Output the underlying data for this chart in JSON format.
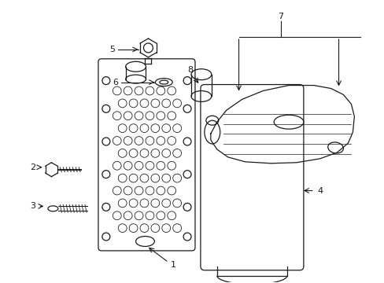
{
  "background_color": "#ffffff",
  "line_color": "#1a1a1a",
  "labels": [
    "1",
    "2",
    "3",
    "4",
    "5",
    "6",
    "7",
    "8"
  ]
}
